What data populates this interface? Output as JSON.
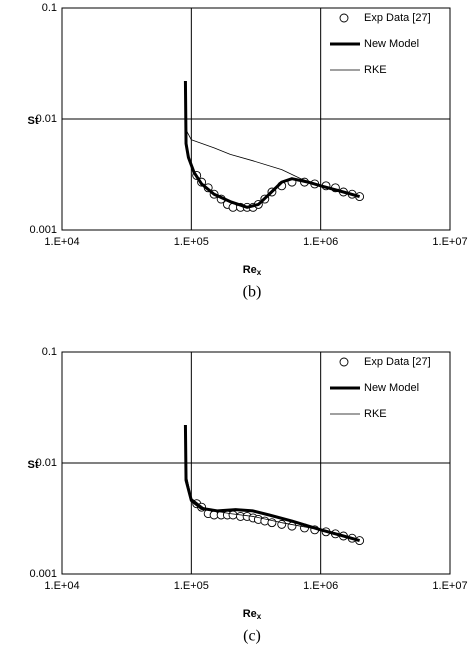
{
  "chart_data": [
    {
      "type": "line",
      "caption": "(b)",
      "x_label": "Re",
      "x_label_sub": "x",
      "y_label": "St",
      "xscale": "log",
      "yscale": "log",
      "grid": true,
      "legend": "upper right",
      "xlim": [
        10000,
        10000000
      ],
      "xticks": [
        {
          "value": 10000,
          "label": "1.E+04"
        },
        {
          "value": 100000,
          "label": "1.E+05"
        },
        {
          "value": 1000000,
          "label": "1.E+06"
        },
        {
          "value": 10000000,
          "label": "1.E+07"
        }
      ],
      "ylim": [
        0.001,
        0.1
      ],
      "yticks": [
        0.001,
        0.01,
        0.1
      ],
      "series": [
        {
          "name": "Exp Data [27]",
          "color": "#000000",
          "style": "markers",
          "x": [
            110000,
            120000,
            135000,
            150000,
            170000,
            190000,
            210000,
            240000,
            270000,
            300000,
            330000,
            370000,
            420000,
            500000,
            600000,
            750000,
            900000,
            1100000,
            1300000,
            1500000,
            1750000,
            2000000
          ],
          "values": [
            0.0031,
            0.0027,
            0.0024,
            0.0021,
            0.0019,
            0.0017,
            0.0016,
            0.0016,
            0.0016,
            0.0016,
            0.0017,
            0.0019,
            0.0022,
            0.0025,
            0.0027,
            0.0027,
            0.0026,
            0.0025,
            0.0024,
            0.0022,
            0.0021,
            0.002
          ]
        },
        {
          "name": "New Model",
          "color": "#000000",
          "style": "line",
          "width": 3,
          "x": [
            90000,
            91000,
            95000,
            105000,
            120000,
            150000,
            200000,
            270000,
            330000,
            400000,
            500000,
            600000,
            800000,
            1000000,
            1500000,
            2000000
          ],
          "values": [
            0.022,
            0.006,
            0.0045,
            0.0033,
            0.0026,
            0.0021,
            0.0018,
            0.0016,
            0.0017,
            0.0021,
            0.0027,
            0.0029,
            0.0027,
            0.0025,
            0.0022,
            0.002
          ]
        },
        {
          "name": "RKE",
          "color": "#000000",
          "style": "line",
          "width": 0.8,
          "x": [
            90000,
            91000,
            100000,
            150000,
            200000,
            300000,
            500000,
            700000,
            1000000,
            1500000,
            2000000
          ],
          "values": [
            0.022,
            0.008,
            0.0065,
            0.0055,
            0.0048,
            0.0042,
            0.0035,
            0.0029,
            0.0025,
            0.0022,
            0.002
          ]
        }
      ]
    },
    {
      "type": "line",
      "caption": "(c)",
      "x_label": "Re",
      "x_label_sub": "x",
      "y_label": "St",
      "xscale": "log",
      "yscale": "log",
      "grid": true,
      "legend": "upper right",
      "xlim": [
        10000,
        10000000
      ],
      "xticks": [
        {
          "value": 10000,
          "label": "1.E+04"
        },
        {
          "value": 100000,
          "label": "1.E+05"
        },
        {
          "value": 1000000,
          "label": "1.E+06"
        },
        {
          "value": 10000000,
          "label": "1.E+07"
        }
      ],
      "ylim": [
        0.001,
        0.1
      ],
      "yticks": [
        0.001,
        0.01,
        0.1
      ],
      "series": [
        {
          "name": "Exp Data [27]",
          "color": "#000000",
          "style": "markers",
          "x": [
            110000,
            120000,
            135000,
            150000,
            170000,
            190000,
            210000,
            240000,
            270000,
            300000,
            330000,
            370000,
            420000,
            500000,
            600000,
            750000,
            900000,
            1100000,
            1300000,
            1500000,
            1750000,
            2000000
          ],
          "values": [
            0.0043,
            0.004,
            0.0035,
            0.0034,
            0.0034,
            0.0034,
            0.0034,
            0.0033,
            0.0033,
            0.0032,
            0.0031,
            0.003,
            0.0029,
            0.0028,
            0.0027,
            0.0026,
            0.0025,
            0.0024,
            0.0023,
            0.0022,
            0.0021,
            0.002
          ]
        },
        {
          "name": "New Model",
          "color": "#000000",
          "style": "line",
          "width": 3,
          "x": [
            90000,
            91000,
            100000,
            120000,
            160000,
            220000,
            300000,
            400000,
            600000,
            1000000,
            1500000,
            2000000
          ],
          "values": [
            0.022,
            0.007,
            0.0046,
            0.0039,
            0.0037,
            0.0038,
            0.0037,
            0.0034,
            0.003,
            0.0025,
            0.0022,
            0.002
          ]
        },
        {
          "name": "RKE",
          "color": "#000000",
          "style": "line",
          "width": 0.8,
          "x": [
            90000,
            91000,
            100000,
            130000,
            200000,
            300000,
            500000,
            1000000,
            2000000
          ],
          "values": [
            0.022,
            0.008,
            0.0048,
            0.0038,
            0.0035,
            0.0033,
            0.0029,
            0.0025,
            0.002
          ]
        }
      ]
    }
  ]
}
